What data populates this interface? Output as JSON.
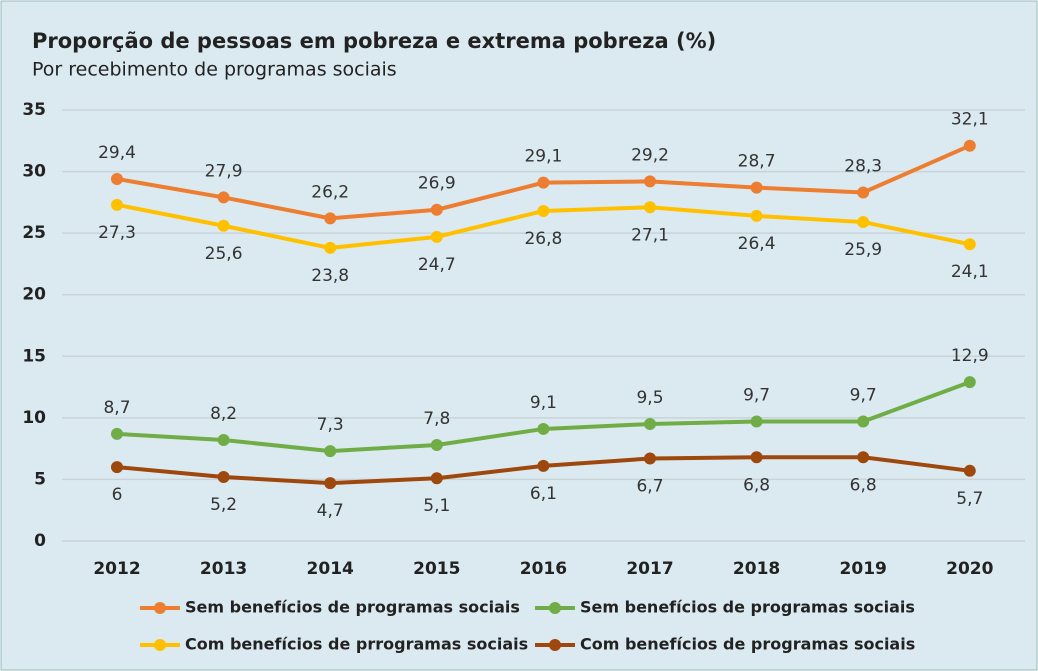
{
  "chart_data": {
    "type": "line",
    "title": "Proporção de pessoas em pobreza e extrema pobreza (%)",
    "subtitle": "Por recebimento de programas sociais",
    "categories": [
      "2012",
      "2013",
      "2014",
      "2015",
      "2016",
      "2017",
      "2018",
      "2019",
      "2020"
    ],
    "ylim": [
      0,
      35
    ],
    "yticks": [
      0,
      5,
      10,
      15,
      20,
      25,
      30,
      35
    ],
    "grid": true,
    "series": [
      {
        "name": "Sem benefícios de programas sociais",
        "color": "#ed7d31",
        "values": [
          29.4,
          27.9,
          26.2,
          26.9,
          29.1,
          29.2,
          28.7,
          28.3,
          32.1
        ],
        "value_labels": [
          "29,4",
          "27,9",
          "26,2",
          "26,9",
          "29,1",
          "29,2",
          "28,7",
          "28,3",
          "32,1"
        ]
      },
      {
        "name": "Com benefícios de prrogramas sociais",
        "color": "#ffc000",
        "values": [
          27.3,
          25.6,
          23.8,
          24.7,
          26.8,
          27.1,
          26.4,
          25.9,
          24.1
        ],
        "value_labels": [
          "27,3",
          "25,6",
          "23,8",
          "24,7",
          "26,8",
          "27,1",
          "26,4",
          "25,9",
          "24,1"
        ]
      },
      {
        "name": "Sem benefícios de programas sociais",
        "color": "#70ad47",
        "values": [
          8.7,
          8.2,
          7.3,
          7.8,
          9.1,
          9.5,
          9.7,
          9.7,
          12.9
        ],
        "value_labels": [
          "8,7",
          "8,2",
          "7,3",
          "7,8",
          "9,1",
          "9,5",
          "9,7",
          "9,7",
          "12,9"
        ]
      },
      {
        "name": "Com benefícios de programas sociais",
        "color": "#9e480e",
        "values": [
          6,
          5.2,
          4.7,
          5.1,
          6.1,
          6.7,
          6.8,
          6.8,
          5.7
        ],
        "value_labels": [
          "6",
          "5,2",
          "4,7",
          "5,1",
          "6,1",
          "6,7",
          "6,8",
          "6,8",
          "5,7"
        ]
      }
    ]
  }
}
